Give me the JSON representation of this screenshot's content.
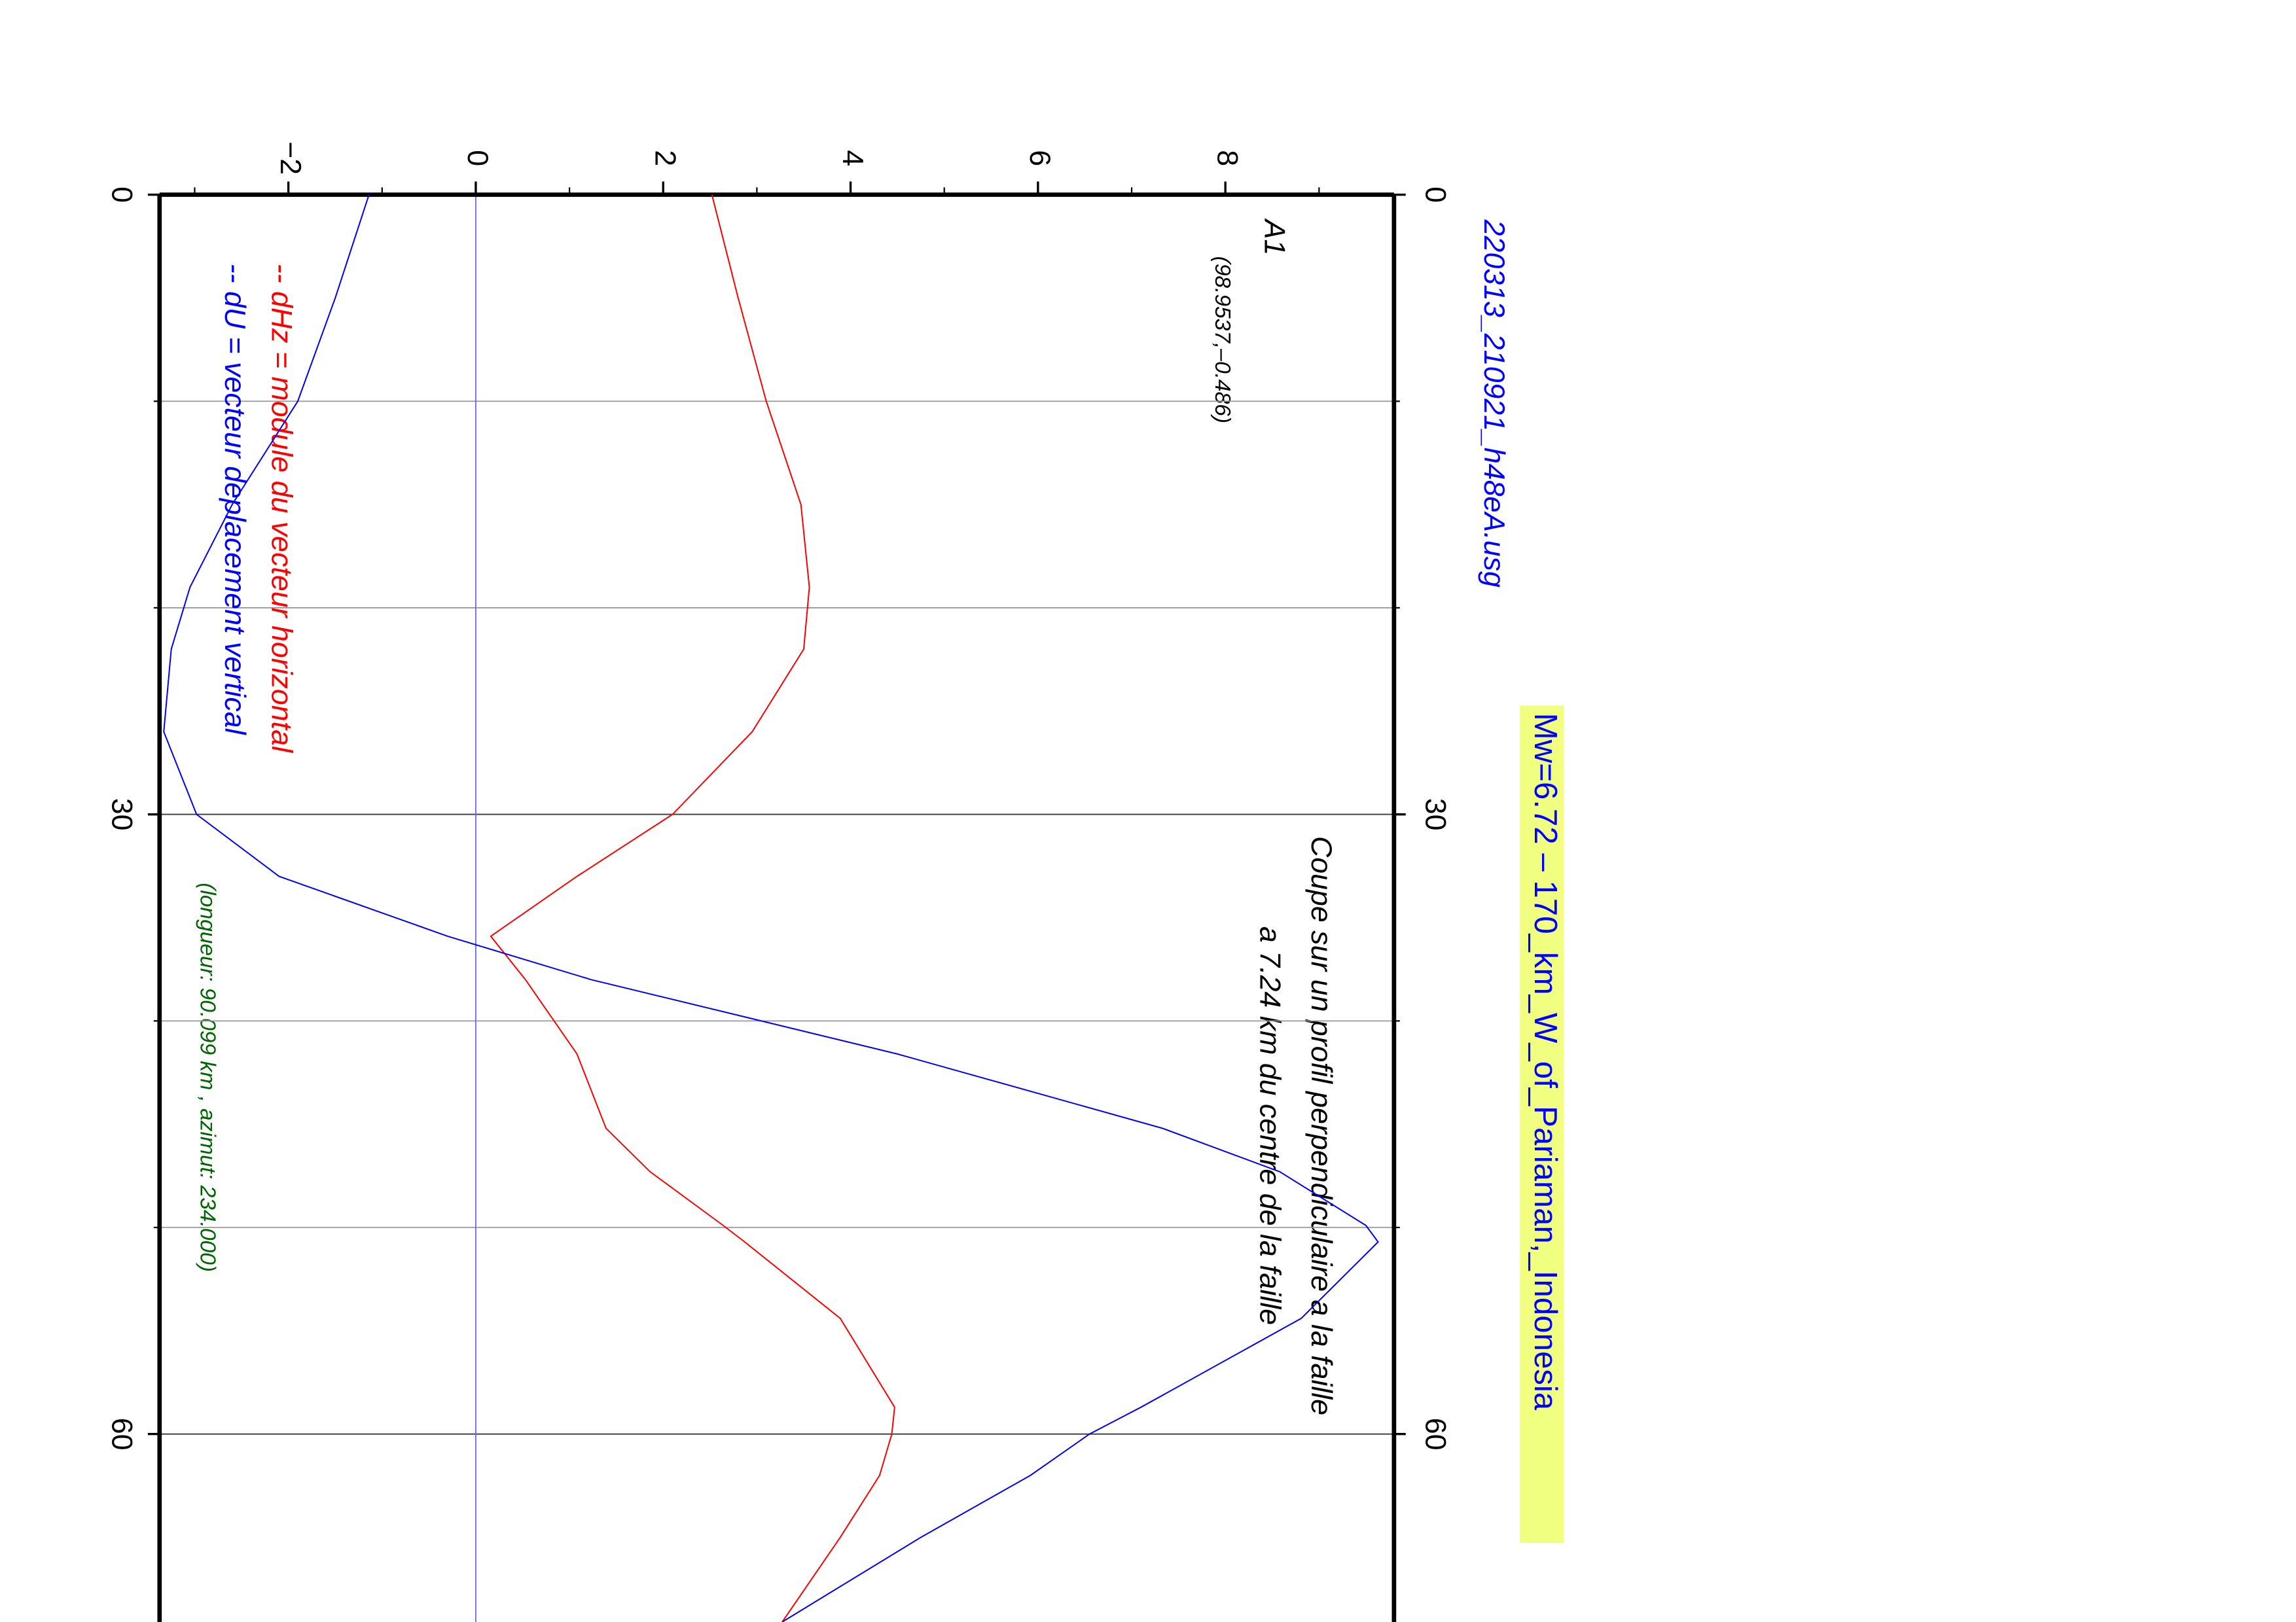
{
  "chart_data": {
    "type": "line",
    "title": "220313_210921_h48eA.usg",
    "subtitle": "Mw=6.72 – 170_km_W_of_Pariaman,_Indonesia",
    "annotations": [
      "A1",
      "(98.9537,–0.486)",
      "Coupe sur un profil perpendiculaire a la faille",
      "a 7.24 km du centre de la faille",
      "(longueur: 90.099 km , azimut: 234.000)"
    ],
    "x": [
      0,
      5,
      10,
      15,
      19,
      22,
      26,
      30,
      33,
      35.9,
      38,
      41.6,
      45.2,
      47.3,
      49.9,
      50.7,
      54.4,
      58.7,
      60,
      62,
      65,
      69.1
    ],
    "series": [
      {
        "name": "-- dHz = module du vecteur horizontal",
        "color": "#ff0000",
        "values": [
          2.52,
          2.8,
          3.1,
          3.47,
          3.56,
          3.5,
          2.95,
          2.1,
          1.08,
          0.16,
          0.53,
          1.08,
          1.39,
          1.86,
          2.64,
          2.87,
          3.89,
          4.47,
          4.44,
          4.31,
          3.89,
          3.27
        ]
      },
      {
        "name": "-- dU = vecteur deplacement vertical",
        "color": "#0000ff",
        "values": [
          -1.14,
          -1.5,
          -1.9,
          -2.6,
          -3.05,
          -3.25,
          -3.33,
          -2.98,
          -2.1,
          -0.3,
          1.23,
          4.5,
          7.33,
          8.58,
          9.5,
          9.63,
          8.81,
          7.1,
          6.55,
          5.92,
          4.75,
          3.27
        ]
      }
    ],
    "xlim": [
      0,
      69.1
    ],
    "xticks": [
      0,
      30,
      60
    ],
    "minor_xticks": [
      10,
      20,
      40,
      50
    ],
    "ylim": [
      -3.375,
      9.8
    ],
    "yticks": [
      {
        "value": -2,
        "label": "−2"
      },
      0,
      2,
      4,
      6,
      8
    ],
    "minor_yticks": [
      -3,
      -1,
      1,
      3,
      5,
      7,
      9
    ],
    "grid": true,
    "zero_line": true
  }
}
